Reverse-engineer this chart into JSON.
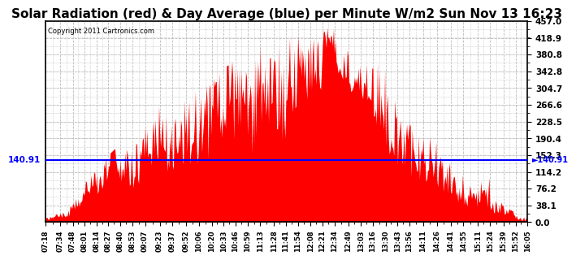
{
  "title": "Solar Radiation (red) & Day Average (blue) per Minute W/m2 Sun Nov 13 16:23",
  "copyright_text": "Copyright 2011 Cartronics.com",
  "avg_line_value": 140.91,
  "avg_line_label": "140.91",
  "ylim": [
    0.0,
    457.0
  ],
  "yticks": [
    0.0,
    38.1,
    76.2,
    114.2,
    152.3,
    190.4,
    228.5,
    266.6,
    304.7,
    342.8,
    380.8,
    418.9,
    457.0
  ],
  "ytick_labels": [
    "0.0",
    "38.1",
    "76.2",
    "114.2",
    "152.3",
    "190.4",
    "228.5",
    "266.6",
    "304.7",
    "342.8",
    "380.8",
    "418.9",
    "457.0"
  ],
  "fill_color": "#FF0000",
  "line_color": "#FF0000",
  "avg_line_color": "#0000FF",
  "background_color": "#FFFFFF",
  "grid_color": "#AAAAAA",
  "title_fontsize": 11,
  "x_labels": [
    "07:18",
    "07:34",
    "07:48",
    "08:01",
    "08:14",
    "08:27",
    "08:40",
    "08:53",
    "09:07",
    "09:23",
    "09:37",
    "09:52",
    "10:06",
    "10:20",
    "10:33",
    "10:46",
    "10:59",
    "11:13",
    "11:28",
    "11:41",
    "11:54",
    "12:08",
    "12:21",
    "12:34",
    "12:49",
    "13:03",
    "13:16",
    "13:30",
    "13:43",
    "13:56",
    "14:11",
    "14:26",
    "14:41",
    "14:55",
    "15:11",
    "15:24",
    "15:39",
    "15:52",
    "16:05"
  ]
}
